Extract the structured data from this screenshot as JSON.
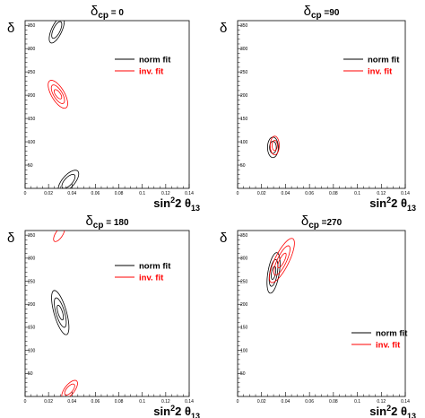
{
  "chart_data": [
    {
      "type": "line",
      "title_main": "δ",
      "title_sub": "cp",
      "title_rest": " = 0",
      "ylabel": "δ",
      "xlabel_main": "sin",
      "xlabel_sup": "2",
      "xlabel_mid": "2 θ",
      "xlabel_sub": "13",
      "xlim": [
        0,
        0.14
      ],
      "ylim": [
        0,
        360
      ],
      "xticks": [
        "0",
        "0.02",
        "0.04",
        "0.06",
        "0.08",
        "0.1",
        "0.12",
        "0.14"
      ],
      "yticks": [
        "50",
        "100",
        "150",
        "200",
        "250",
        "300",
        "350"
      ],
      "legend_position": "top-right",
      "series": [
        {
          "name": "norm fit",
          "color": "#000000",
          "contours": [
            {
              "cx": 0.027,
              "cy": 340,
              "rx": 0.0048,
              "ry": 28,
              "tilt": -1
            },
            {
              "cx": 0.027,
              "cy": 340,
              "rx": 0.0032,
              "ry": 18,
              "tilt": -1
            },
            {
              "cx": 0.037,
              "cy": 15,
              "rx": 0.0065,
              "ry": 24,
              "tilt": -1
            },
            {
              "cx": 0.037,
              "cy": 15,
              "rx": 0.0042,
              "ry": 15,
              "tilt": -1
            }
          ]
        },
        {
          "name": "inv. fit",
          "color": "#ff0000",
          "contours": [
            {
              "cx": 0.028,
              "cy": 202,
              "rx": 0.0062,
              "ry": 30,
              "tilt": 1
            },
            {
              "cx": 0.028,
              "cy": 202,
              "rx": 0.0042,
              "ry": 20,
              "tilt": 1
            },
            {
              "cx": 0.028,
              "cy": 202,
              "rx": 0.0024,
              "ry": 10,
              "tilt": 1
            }
          ]
        }
      ]
    },
    {
      "type": "line",
      "title_main": "δ",
      "title_sub": "cp",
      "title_rest": " =90",
      "ylabel": "δ",
      "xlabel_main": "sin",
      "xlabel_sup": "2",
      "xlabel_mid": "2 θ",
      "xlabel_sub": "13",
      "xlim": [
        0,
        0.14
      ],
      "ylim": [
        0,
        360
      ],
      "xticks": [
        "0",
        "0.02",
        "0.04",
        "0.06",
        "0.08",
        "0.1",
        "0.12",
        "0.14"
      ],
      "yticks": [
        "50",
        "100",
        "150",
        "200",
        "250",
        "300",
        "350"
      ],
      "legend_position": "top-right",
      "series": [
        {
          "name": "norm fit",
          "color": "#000000",
          "contours": [
            {
              "cx": 0.0295,
              "cy": 88,
              "rx": 0.0045,
              "ry": 22,
              "tilt": 0
            },
            {
              "cx": 0.0295,
              "cy": 88,
              "rx": 0.0028,
              "ry": 13,
              "tilt": 0
            }
          ]
        },
        {
          "name": "inv. fit",
          "color": "#ff0000",
          "contours": [
            {
              "cx": 0.031,
              "cy": 92,
              "rx": 0.0038,
              "ry": 20,
              "tilt": 0
            },
            {
              "cx": 0.031,
              "cy": 92,
              "rx": 0.0022,
              "ry": 11,
              "tilt": 0
            }
          ]
        }
      ]
    },
    {
      "type": "line",
      "title_main": "δ",
      "title_sub": "cp",
      "title_rest": " = 180",
      "ylabel": "δ",
      "xlabel_main": "sin",
      "xlabel_sup": "2",
      "xlabel_mid": "2 θ",
      "xlabel_sub": "13",
      "xlim": [
        0,
        0.14
      ],
      "ylim": [
        0,
        360
      ],
      "xticks": [
        "0",
        "0.02",
        "0.04",
        "0.06",
        "0.08",
        "0.1",
        "0.12",
        "0.14"
      ],
      "yticks": [
        "50",
        "100",
        "150",
        "200",
        "250",
        "300",
        "350"
      ],
      "legend_position": "top-right",
      "series": [
        {
          "name": "norm fit",
          "color": "#000000",
          "contours": [
            {
              "cx": 0.03,
              "cy": 182,
              "rx": 0.0055,
              "ry": 48,
              "tilt": 1
            },
            {
              "cx": 0.03,
              "cy": 182,
              "rx": 0.0038,
              "ry": 32,
              "tilt": 1
            },
            {
              "cx": 0.03,
              "cy": 182,
              "rx": 0.002,
              "ry": 16,
              "tilt": 1
            }
          ]
        },
        {
          "name": "inv. fit",
          "color": "#ff0000",
          "contours": [
            {
              "cx": 0.029,
              "cy": 352,
              "rx": 0.0035,
              "ry": 16,
              "tilt": -1
            },
            {
              "cx": 0.038,
              "cy": 15,
              "rx": 0.005,
              "ry": 20,
              "tilt": -1
            },
            {
              "cx": 0.038,
              "cy": 15,
              "rx": 0.0032,
              "ry": 12,
              "tilt": -1
            }
          ]
        }
      ]
    },
    {
      "type": "line",
      "title_main": "δ",
      "title_sub": "cp",
      "title_rest": " =270",
      "ylabel": "δ",
      "xlabel_main": "sin",
      "xlabel_sup": "2",
      "xlabel_mid": "2 θ",
      "xlabel_sub": "13",
      "xlim": [
        0,
        0.14
      ],
      "ylim": [
        0,
        360
      ],
      "xticks": [
        "0",
        "0.02",
        "0.04",
        "0.06",
        "0.08",
        "0.1",
        "0.12",
        "0.14"
      ],
      "yticks": [
        "50",
        "100",
        "150",
        "200",
        "250",
        "300",
        "350"
      ],
      "legend_position": "bottom-right",
      "series": [
        {
          "name": "norm fit",
          "color": "#000000",
          "contours": [
            {
              "cx": 0.03,
              "cy": 268,
              "rx": 0.0048,
              "ry": 44,
              "tilt": -0.6
            },
            {
              "cx": 0.03,
              "cy": 268,
              "rx": 0.0032,
              "ry": 29,
              "tilt": -0.6
            },
            {
              "cx": 0.03,
              "cy": 268,
              "rx": 0.0017,
              "ry": 14,
              "tilt": -0.6
            }
          ]
        },
        {
          "name": "inv. fit",
          "color": "#ff0000",
          "contours": [
            {
              "cx": 0.037,
              "cy": 295,
              "rx": 0.0065,
              "ry": 48,
              "tilt": -1.4
            },
            {
              "cx": 0.037,
              "cy": 295,
              "rx": 0.0042,
              "ry": 32,
              "tilt": -1.4
            },
            {
              "cx": 0.037,
              "cy": 295,
              "rx": 0.0022,
              "ry": 16,
              "tilt": -1.4
            }
          ]
        }
      ]
    }
  ]
}
